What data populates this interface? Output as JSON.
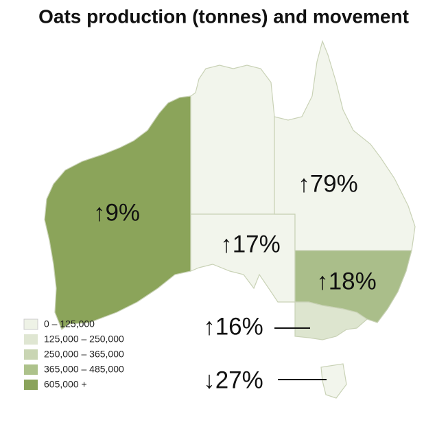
{
  "title": "Oats production (tonnes) and movement",
  "regions": [
    {
      "label": "↑9%"
    },
    {
      "label": "↑79%"
    },
    {
      "label": "↑17%"
    },
    {
      "label": "↑18%"
    },
    {
      "label": "↑16%"
    },
    {
      "label": "↓27%"
    }
  ],
  "legend": [
    {
      "label": "0 – 125,000"
    },
    {
      "label": "125,000 – 250,000"
    },
    {
      "label": "250,000 – 365,000"
    },
    {
      "label": "365,000 – 485,000"
    },
    {
      "label": "605,000 +"
    }
  ]
}
